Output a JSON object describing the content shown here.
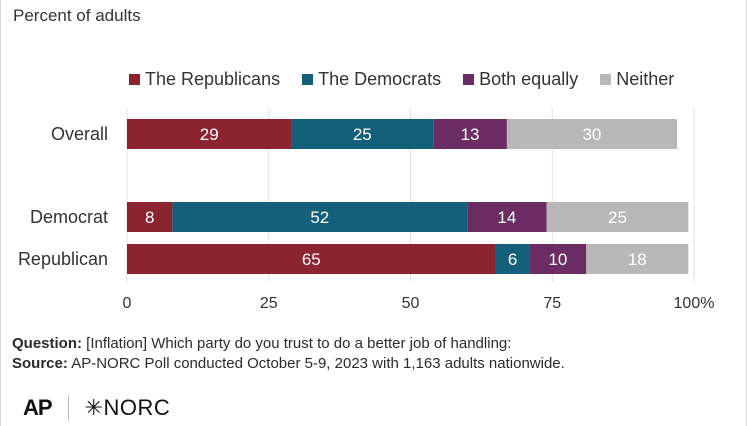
{
  "subtitle": "Percent of adults",
  "legend": [
    {
      "label": "The Republicans",
      "color": "#8b2330"
    },
    {
      "label": "The Democrats",
      "color": "#14607a"
    },
    {
      "label": "Both equally",
      "color": "#6b2c63"
    },
    {
      "label": "Neither",
      "color": "#b8b8b8"
    }
  ],
  "chart_data": {
    "type": "bar",
    "orientation": "horizontal",
    "stacked": true,
    "categories": [
      "Overall",
      "Democrat",
      "Republican"
    ],
    "series": [
      {
        "name": "The Republicans",
        "color": "#8b2330",
        "values": [
          29,
          8,
          65
        ]
      },
      {
        "name": "The Democrats",
        "color": "#14607a",
        "values": [
          25,
          52,
          6
        ]
      },
      {
        "name": "Both equally",
        "color": "#6b2c63",
        "values": [
          13,
          14,
          10
        ]
      },
      {
        "name": "Neither",
        "color": "#b8b8b8",
        "values": [
          30,
          25,
          18
        ]
      }
    ],
    "xlim": [
      0,
      100
    ],
    "xticks": [
      "0",
      "25",
      "50",
      "75",
      "100%"
    ],
    "grid": true,
    "legend_position": "top"
  },
  "notes": {
    "question_label": "Question:",
    "question_text": " [Inflation] Which party do you trust to do a better job of handling:",
    "source_label": "Source:",
    "source_text": " AP-NORC Poll conducted October 5-9, 2023 with 1,163 adults nationwide."
  },
  "logos": {
    "ap": "AP",
    "norc": "✳NORC"
  }
}
